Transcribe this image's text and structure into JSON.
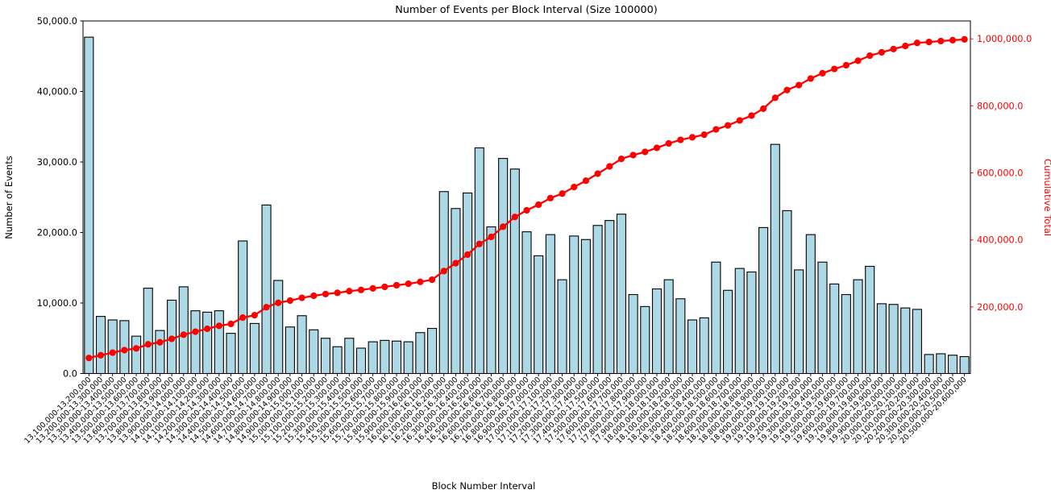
{
  "chart_data": {
    "type": "bar",
    "title": "Number of Events per Block Interval (Size 100000)",
    "xlabel": "Block Number Interval",
    "ylabel_left": "Number of Events",
    "ylabel_right": "Cumulative Total",
    "grid": false,
    "legend": "none",
    "colors": {
      "bar_fill": "#ADD8E6",
      "bar_edge": "#000000",
      "line": "#FF0000",
      "left_axis_text": "#000000",
      "right_axis_text": "#FF0000",
      "background": "#FFFFFF"
    },
    "y_left": {
      "lim": [
        0,
        50000
      ],
      "tick_values": [
        0,
        10000,
        20000,
        30000,
        40000,
        50000
      ],
      "tick_labels": [
        "0.0",
        "10,000.0",
        "20,000.0",
        "30,000.0",
        "40,000.0",
        "50,000.0"
      ]
    },
    "y_right": {
      "lim": [
        0,
        1052000
      ],
      "tick_values": [
        200000,
        400000,
        600000,
        800000,
        1000000
      ],
      "tick_labels": [
        "200,000.0",
        "400,000.0",
        "600,000.0",
        "800,000.0",
        "1,000,000.0"
      ]
    },
    "categories": [
      "13,100,000-13,200,000",
      "13,200,000-13,300,000",
      "13,300,000-13,400,000",
      "13,400,000-13,500,000",
      "13,500,000-13,600,000",
      "13,600,000-13,700,000",
      "13,700,000-13,800,000",
      "13,800,000-13,900,000",
      "13,900,000-14,000,000",
      "14,000,000-14,100,000",
      "14,100,000-14,200,000",
      "14,200,000-14,300,000",
      "14,300,000-14,400,000",
      "14,400,000-14,500,000",
      "14,500,000-14,600,000",
      "14,600,000-14,700,000",
      "14,700,000-14,800,000",
      "14,800,000-14,900,000",
      "14,900,000-15,000,000",
      "15,000,000-15,100,000",
      "15,100,000-15,200,000",
      "15,200,000-15,300,000",
      "15,300,000-15,400,000",
      "15,400,000-15,500,000",
      "15,500,000-15,600,000",
      "15,600,000-15,700,000",
      "15,700,000-15,800,000",
      "15,800,000-15,900,000",
      "15,900,000-16,000,000",
      "16,000,000-16,100,000",
      "16,100,000-16,200,000",
      "16,200,000-16,300,000",
      "16,300,000-16,400,000",
      "16,400,000-16,500,000",
      "16,500,000-16,600,000",
      "16,600,000-16,700,000",
      "16,700,000-16,800,000",
      "16,800,000-16,900,000",
      "16,900,000-17,000,000",
      "17,000,000-17,100,000",
      "17,100,000-17,200,000",
      "17,200,000-17,300,000",
      "17,300,000-17,400,000",
      "17,400,000-17,500,000",
      "17,500,000-17,600,000",
      "17,600,000-17,700,000",
      "17,700,000-17,800,000",
      "17,800,000-17,900,000",
      "17,900,000-18,000,000",
      "18,000,000-18,100,000",
      "18,100,000-18,200,000",
      "18,200,000-18,300,000",
      "18,300,000-18,400,000",
      "18,400,000-18,500,000",
      "18,500,000-18,600,000",
      "18,600,000-18,700,000",
      "18,700,000-18,800,000",
      "18,800,000-18,900,000",
      "18,900,000-19,000,000",
      "19,000,000-19,100,000",
      "19,100,000-19,200,000",
      "19,200,000-19,300,000",
      "19,300,000-19,400,000",
      "19,400,000-19,500,000",
      "19,500,000-19,600,000",
      "19,600,000-19,700,000",
      "19,700,000-19,800,000",
      "19,800,000-19,900,000",
      "19,900,000-20,000,000",
      "20,000,000-20,100,000",
      "20,100,000-20,200,000",
      "20,200,000-20,300,000",
      "20,300,000-20,400,000",
      "20,400,000-20,500,000",
      "20,500,000-20,600,000"
    ],
    "series": [
      {
        "name": "Number of Events",
        "type": "bar",
        "axis": "left",
        "values": [
          47700,
          8100,
          7600,
          7500,
          5300,
          12100,
          6100,
          10400,
          12300,
          8900,
          8700,
          8900,
          5700,
          18800,
          7100,
          23900,
          13200,
          6600,
          8200,
          6200,
          5000,
          3800,
          5000,
          3600,
          4500,
          4700,
          4600,
          4500,
          5800,
          6400,
          25800,
          23400,
          25600,
          32000,
          20800,
          30500,
          29000,
          20100,
          16700,
          19700,
          13300,
          19500,
          19000,
          21000,
          21700,
          22600,
          11200,
          9500,
          12000,
          13300,
          10600,
          7600,
          7900,
          15800,
          11800,
          14900,
          14400,
          20700,
          32500,
          23100,
          14700,
          19700,
          15800,
          12700,
          11200,
          13300,
          15200,
          9900,
          9800,
          9300,
          9100,
          2700,
          2800,
          2600,
          2400
        ]
      },
      {
        "name": "Cumulative Total",
        "type": "line",
        "axis": "right",
        "derived": "cumulative_sum_of_bar_series"
      }
    ]
  }
}
